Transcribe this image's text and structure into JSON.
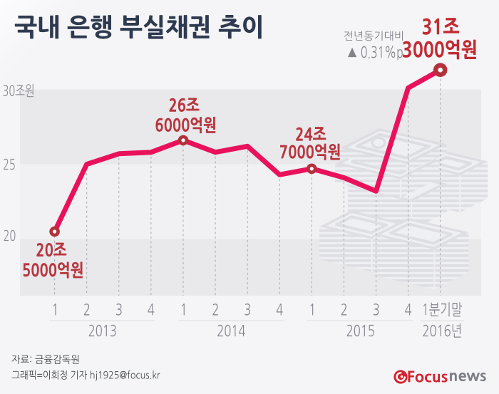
{
  "title": "국내 은행 부실채권 추이",
  "delta_note": {
    "label": "전년동기대비",
    "value": "▲ 0.31%p"
  },
  "chart_data": {
    "type": "line",
    "title": "국내 은행 부실채권 추이",
    "unit": "조원",
    "quarter_labels": [
      "1",
      "2",
      "3",
      "4",
      "1",
      "2",
      "3",
      "4",
      "1",
      "2",
      "3",
      "4",
      "1분기말"
    ],
    "year_labels": [
      "2013",
      "2014",
      "2015",
      "2016년"
    ],
    "values": [
      20.5,
      25.0,
      25.7,
      25.8,
      26.6,
      25.8,
      26.2,
      24.3,
      24.7,
      24.1,
      23.2,
      30.1,
      31.3
    ],
    "y_ticks": [
      "30조원",
      "25",
      "20"
    ],
    "y_tick_values": [
      30,
      25,
      20
    ],
    "ylim": [
      16.2,
      31.5
    ],
    "grid": "banded-rows",
    "legend": false,
    "annotations": [
      {
        "index": 0,
        "line1": "20조",
        "line2": "5000억원",
        "value": 20.5
      },
      {
        "index": 4,
        "line1": "26조",
        "line2": "6000억원",
        "value": 26.6
      },
      {
        "index": 8,
        "line1": "24조",
        "line2": "7000억원",
        "value": 24.7
      },
      {
        "index": 12,
        "line1": "31조",
        "line2": "3000억원",
        "value": 31.3
      }
    ],
    "line_color": "#e9125a",
    "marker_ring_color": "#b2313a",
    "annotation_color": "#b8363e",
    "highlight_color": "#c22b32"
  },
  "source": "자료: 금융감독원",
  "credit": "그래픽=이희정 기자 hj1925@focus.kr",
  "logo": {
    "brand": "Focus",
    "suffix": "news",
    "color": "#d5212e"
  }
}
